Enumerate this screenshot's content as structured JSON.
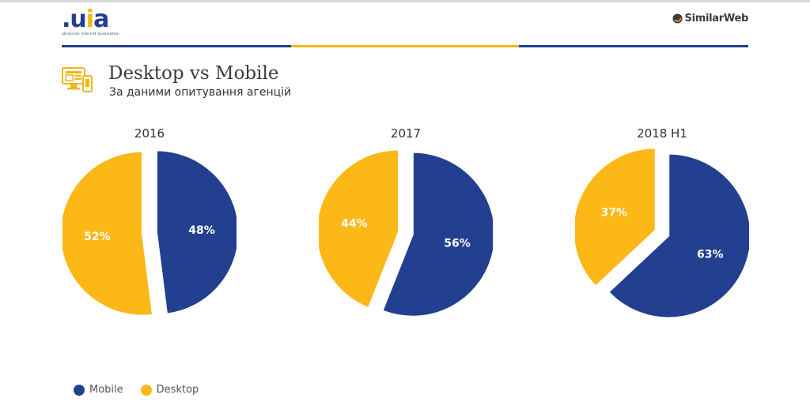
{
  "header": {
    "logo_text_a": ".u",
    "logo_text_b": "i",
    "logo_text_c": "a",
    "logo_subtitle": "ukrainian internet association",
    "partner": "SimilarWeb",
    "title": "Desktop vs Mobile",
    "subtitle": "За даними опитування агенцій"
  },
  "colors": {
    "mobile": "#233f8f",
    "desktop": "#fbb817",
    "navy": "#233d8f",
    "yellow": "#f4b515"
  },
  "chart_data": [
    {
      "type": "pie",
      "title": "2016",
      "series": [
        {
          "name": "Mobile",
          "value": 48
        },
        {
          "name": "Desktop",
          "value": 52
        }
      ]
    },
    {
      "type": "pie",
      "title": "2017",
      "series": [
        {
          "name": "Mobile",
          "value": 56
        },
        {
          "name": "Desktop",
          "value": 44
        }
      ]
    },
    {
      "type": "pie",
      "title": "2018 H1",
      "series": [
        {
          "name": "Mobile",
          "value": 63
        },
        {
          "name": "Desktop",
          "value": 37
        }
      ]
    }
  ],
  "legend": [
    {
      "label": "Mobile",
      "color": "#233f8f"
    },
    {
      "label": "Desktop",
      "color": "#fbb817"
    }
  ]
}
